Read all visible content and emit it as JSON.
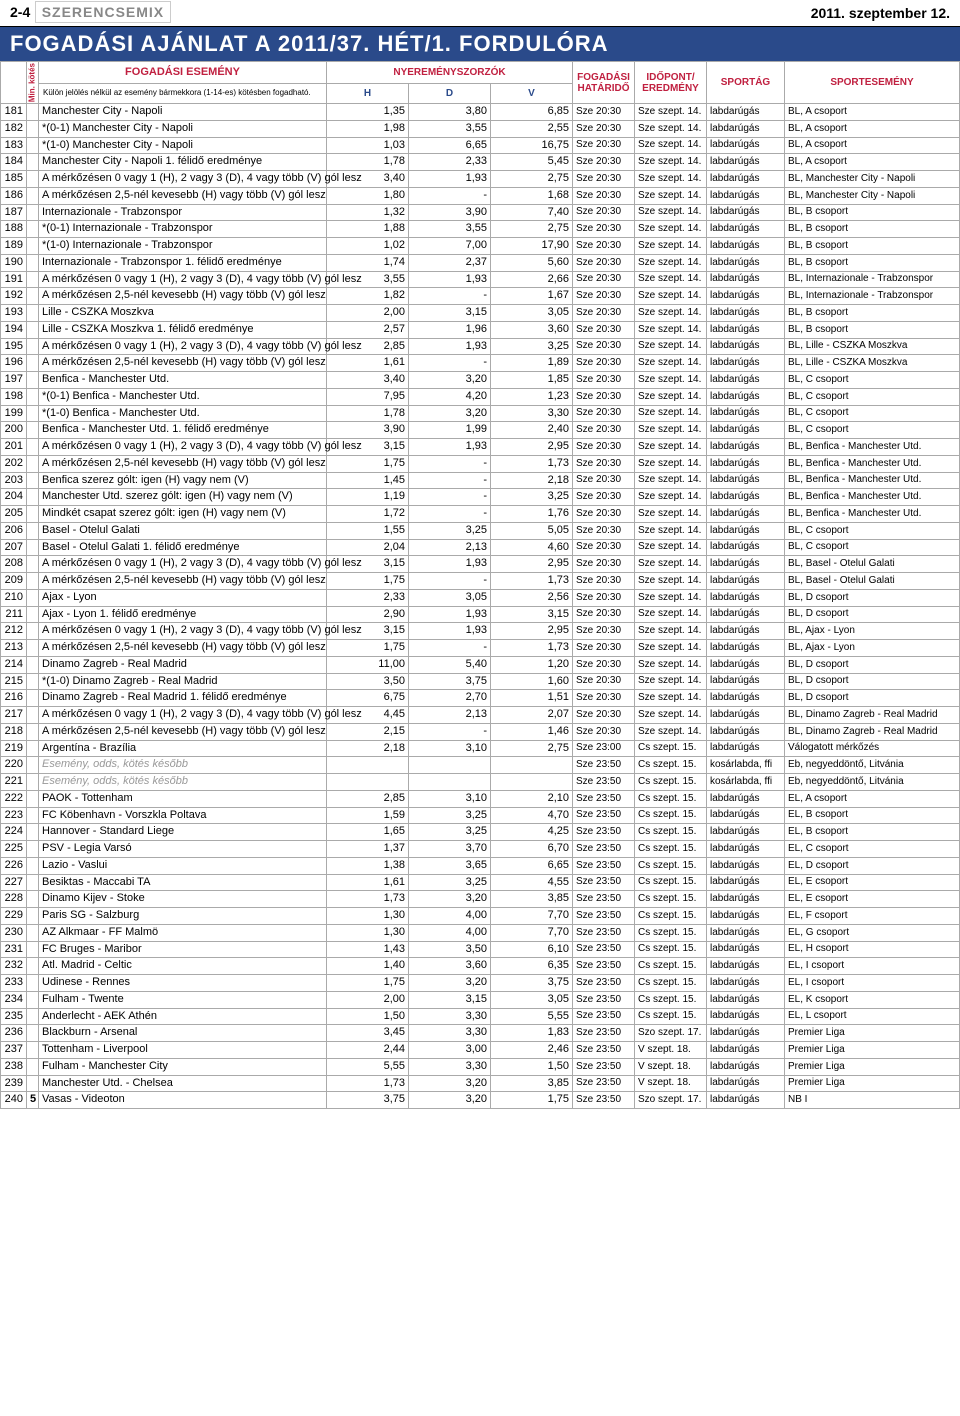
{
  "header": {
    "page": "2-4",
    "brand": "SZERENCSEMIX",
    "date": "2011. szeptember 12."
  },
  "banner": "Fogadási ajánlat a 2011/37. hét/1. fordulóra",
  "table": {
    "head": {
      "min": "Min. kötés",
      "event": "FOGADÁSI ESEMÉNY",
      "event_note": "Külön jelölés nélkül az esemény bármekkora (1-14-es) kötésben fogadható.",
      "odds_group": "NYEREMÉNYSZORZÓK",
      "h": "H",
      "d": "D",
      "v": "V",
      "deadline": "FOGADÁSI HATÁRIDŐ",
      "time": "IDŐPONT/ EREDMÉNY",
      "sport": "SPORTÁG",
      "detail": "SPORTESEMÉNY"
    },
    "rows": [
      {
        "n": "181",
        "m": "",
        "e": "Manchester City - Napoli",
        "h": "1,35",
        "d": "3,80",
        "v": "6,85",
        "dl": "Sze 20:30",
        "t": "Sze szept. 14.",
        "s": "labdarúgás",
        "de": "BL, A csoport"
      },
      {
        "n": "182",
        "m": "",
        "e": "*(0-1) Manchester City - Napoli",
        "h": "1,98",
        "d": "3,55",
        "v": "2,55",
        "dl": "Sze 20:30",
        "t": "Sze szept. 14.",
        "s": "labdarúgás",
        "de": "BL, A csoport"
      },
      {
        "n": "183",
        "m": "",
        "e": "*(1-0) Manchester City - Napoli",
        "h": "1,03",
        "d": "6,65",
        "v": "16,75",
        "dl": "Sze 20:30",
        "t": "Sze szept. 14.",
        "s": "labdarúgás",
        "de": "BL, A csoport"
      },
      {
        "n": "184",
        "m": "",
        "e": "Manchester City - Napoli 1. félidő eredménye",
        "h": "1,78",
        "d": "2,33",
        "v": "5,45",
        "dl": "Sze 20:30",
        "t": "Sze szept. 14.",
        "s": "labdarúgás",
        "de": "BL, A csoport"
      },
      {
        "n": "185",
        "m": "",
        "e": "A mérkőzésen 0 vagy 1 (H), 2 vagy 3 (D), 4 vagy több (V) gól lesz",
        "h": "3,40",
        "d": "1,93",
        "v": "2,75",
        "dl": "Sze 20:30",
        "t": "Sze szept. 14.",
        "s": "labdarúgás",
        "de": "BL, Manchester City - Napoli"
      },
      {
        "n": "186",
        "m": "",
        "e": "A mérkőzésen 2,5-nél kevesebb (H) vagy több (V) gól lesz",
        "h": "1,80",
        "d": "-",
        "v": "1,68",
        "dl": "Sze 20:30",
        "t": "Sze szept. 14.",
        "s": "labdarúgás",
        "de": "BL, Manchester City - Napoli"
      },
      {
        "n": "187",
        "m": "",
        "e": "Internazionale - Trabzonspor",
        "h": "1,32",
        "d": "3,90",
        "v": "7,40",
        "dl": "Sze 20:30",
        "t": "Sze szept. 14.",
        "s": "labdarúgás",
        "de": "BL, B csoport"
      },
      {
        "n": "188",
        "m": "",
        "e": "*(0-1) Internazionale - Trabzonspor",
        "h": "1,88",
        "d": "3,55",
        "v": "2,75",
        "dl": "Sze 20:30",
        "t": "Sze szept. 14.",
        "s": "labdarúgás",
        "de": "BL, B csoport"
      },
      {
        "n": "189",
        "m": "",
        "e": "*(1-0) Internazionale - Trabzonspor",
        "h": "1,02",
        "d": "7,00",
        "v": "17,90",
        "dl": "Sze 20:30",
        "t": "Sze szept. 14.",
        "s": "labdarúgás",
        "de": "BL, B csoport"
      },
      {
        "n": "190",
        "m": "",
        "e": "Internazionale - Trabzonspor 1. félidő eredménye",
        "h": "1,74",
        "d": "2,37",
        "v": "5,60",
        "dl": "Sze 20:30",
        "t": "Sze szept. 14.",
        "s": "labdarúgás",
        "de": "BL, B csoport"
      },
      {
        "n": "191",
        "m": "",
        "e": "A mérkőzésen 0 vagy 1 (H), 2 vagy 3 (D), 4 vagy több (V) gól lesz",
        "h": "3,55",
        "d": "1,93",
        "v": "2,66",
        "dl": "Sze 20:30",
        "t": "Sze szept. 14.",
        "s": "labdarúgás",
        "de": "BL, Internazionale - Trabzonspor"
      },
      {
        "n": "192",
        "m": "",
        "e": "A mérkőzésen 2,5-nél kevesebb (H) vagy több (V) gól lesz",
        "h": "1,82",
        "d": "-",
        "v": "1,67",
        "dl": "Sze 20:30",
        "t": "Sze szept. 14.",
        "s": "labdarúgás",
        "de": "BL, Internazionale - Trabzonspor"
      },
      {
        "n": "193",
        "m": "",
        "e": "Lille - CSZKA Moszkva",
        "h": "2,00",
        "d": "3,15",
        "v": "3,05",
        "dl": "Sze 20:30",
        "t": "Sze szept. 14.",
        "s": "labdarúgás",
        "de": "BL, B csoport"
      },
      {
        "n": "194",
        "m": "",
        "e": "Lille - CSZKA Moszkva 1. félidő eredménye",
        "h": "2,57",
        "d": "1,96",
        "v": "3,60",
        "dl": "Sze 20:30",
        "t": "Sze szept. 14.",
        "s": "labdarúgás",
        "de": "BL, B csoport"
      },
      {
        "n": "195",
        "m": "",
        "e": "A mérkőzésen 0 vagy 1 (H), 2 vagy 3 (D), 4 vagy több (V) gól lesz",
        "h": "2,85",
        "d": "1,93",
        "v": "3,25",
        "dl": "Sze 20:30",
        "t": "Sze szept. 14.",
        "s": "labdarúgás",
        "de": "BL, Lille - CSZKA Moszkva"
      },
      {
        "n": "196",
        "m": "",
        "e": "A mérkőzésen 2,5-nél kevesebb (H) vagy több (V) gól lesz",
        "h": "1,61",
        "d": "-",
        "v": "1,89",
        "dl": "Sze 20:30",
        "t": "Sze szept. 14.",
        "s": "labdarúgás",
        "de": "BL, Lille - CSZKA Moszkva"
      },
      {
        "n": "197",
        "m": "",
        "e": "Benfica - Manchester Utd.",
        "h": "3,40",
        "d": "3,20",
        "v": "1,85",
        "dl": "Sze 20:30",
        "t": "Sze szept. 14.",
        "s": "labdarúgás",
        "de": "BL, C csoport"
      },
      {
        "n": "198",
        "m": "",
        "e": "*(0-1) Benfica - Manchester Utd.",
        "h": "7,95",
        "d": "4,20",
        "v": "1,23",
        "dl": "Sze 20:30",
        "t": "Sze szept. 14.",
        "s": "labdarúgás",
        "de": "BL, C csoport"
      },
      {
        "n": "199",
        "m": "",
        "e": "*(1-0) Benfica - Manchester Utd.",
        "h": "1,78",
        "d": "3,20",
        "v": "3,30",
        "dl": "Sze 20:30",
        "t": "Sze szept. 14.",
        "s": "labdarúgás",
        "de": "BL, C csoport"
      },
      {
        "n": "200",
        "m": "",
        "e": "Benfica - Manchester Utd. 1. félidő eredménye",
        "h": "3,90",
        "d": "1,99",
        "v": "2,40",
        "dl": "Sze 20:30",
        "t": "Sze szept. 14.",
        "s": "labdarúgás",
        "de": "BL, C csoport"
      },
      {
        "n": "201",
        "m": "",
        "e": "A mérkőzésen 0 vagy 1 (H), 2 vagy 3 (D), 4 vagy több (V) gól lesz",
        "h": "3,15",
        "d": "1,93",
        "v": "2,95",
        "dl": "Sze 20:30",
        "t": "Sze szept. 14.",
        "s": "labdarúgás",
        "de": "BL, Benfica - Manchester Utd."
      },
      {
        "n": "202",
        "m": "",
        "e": "A mérkőzésen 2,5-nél kevesebb (H) vagy több (V) gól lesz",
        "h": "1,75",
        "d": "-",
        "v": "1,73",
        "dl": "Sze 20:30",
        "t": "Sze szept. 14.",
        "s": "labdarúgás",
        "de": "BL, Benfica - Manchester Utd."
      },
      {
        "n": "203",
        "m": "",
        "e": "Benfica szerez gólt: igen (H) vagy nem (V)",
        "h": "1,45",
        "d": "-",
        "v": "2,18",
        "dl": "Sze 20:30",
        "t": "Sze szept. 14.",
        "s": "labdarúgás",
        "de": "BL, Benfica - Manchester Utd."
      },
      {
        "n": "204",
        "m": "",
        "e": "Manchester Utd. szerez gólt: igen (H) vagy nem (V)",
        "h": "1,19",
        "d": "-",
        "v": "3,25",
        "dl": "Sze 20:30",
        "t": "Sze szept. 14.",
        "s": "labdarúgás",
        "de": "BL, Benfica - Manchester Utd."
      },
      {
        "n": "205",
        "m": "",
        "e": "Mindkét csapat szerez gólt: igen (H) vagy nem (V)",
        "h": "1,72",
        "d": "-",
        "v": "1,76",
        "dl": "Sze 20:30",
        "t": "Sze szept. 14.",
        "s": "labdarúgás",
        "de": "BL, Benfica - Manchester Utd."
      },
      {
        "n": "206",
        "m": "",
        "e": "Basel - Otelul Galati",
        "h": "1,55",
        "d": "3,25",
        "v": "5,05",
        "dl": "Sze 20:30",
        "t": "Sze szept. 14.",
        "s": "labdarúgás",
        "de": "BL, C csoport"
      },
      {
        "n": "207",
        "m": "",
        "e": "Basel - Otelul Galati 1. félidő eredménye",
        "h": "2,04",
        "d": "2,13",
        "v": "4,60",
        "dl": "Sze 20:30",
        "t": "Sze szept. 14.",
        "s": "labdarúgás",
        "de": "BL, C csoport"
      },
      {
        "n": "208",
        "m": "",
        "e": "A mérkőzésen 0 vagy 1 (H), 2 vagy 3 (D), 4 vagy több (V) gól lesz",
        "h": "3,15",
        "d": "1,93",
        "v": "2,95",
        "dl": "Sze 20:30",
        "t": "Sze szept. 14.",
        "s": "labdarúgás",
        "de": "BL, Basel - Otelul Galati"
      },
      {
        "n": "209",
        "m": "",
        "e": "A mérkőzésen 2,5-nél kevesebb (H) vagy több (V) gól lesz",
        "h": "1,75",
        "d": "-",
        "v": "1,73",
        "dl": "Sze 20:30",
        "t": "Sze szept. 14.",
        "s": "labdarúgás",
        "de": "BL, Basel - Otelul Galati"
      },
      {
        "n": "210",
        "m": "",
        "e": "Ajax - Lyon",
        "h": "2,33",
        "d": "3,05",
        "v": "2,56",
        "dl": "Sze 20:30",
        "t": "Sze szept. 14.",
        "s": "labdarúgás",
        "de": "BL, D csoport"
      },
      {
        "n": "211",
        "m": "",
        "e": "Ajax - Lyon 1. félidő eredménye",
        "h": "2,90",
        "d": "1,93",
        "v": "3,15",
        "dl": "Sze 20:30",
        "t": "Sze szept. 14.",
        "s": "labdarúgás",
        "de": "BL, D csoport"
      },
      {
        "n": "212",
        "m": "",
        "e": "A mérkőzésen 0 vagy 1 (H), 2 vagy 3 (D), 4 vagy több (V) gól lesz",
        "h": "3,15",
        "d": "1,93",
        "v": "2,95",
        "dl": "Sze 20:30",
        "t": "Sze szept. 14.",
        "s": "labdarúgás",
        "de": "BL, Ajax - Lyon"
      },
      {
        "n": "213",
        "m": "",
        "e": "A mérkőzésen 2,5-nél kevesebb (H) vagy több (V) gól lesz",
        "h": "1,75",
        "d": "-",
        "v": "1,73",
        "dl": "Sze 20:30",
        "t": "Sze szept. 14.",
        "s": "labdarúgás",
        "de": "BL, Ajax - Lyon"
      },
      {
        "n": "214",
        "m": "",
        "e": "Dinamo Zagreb - Real Madrid",
        "h": "11,00",
        "d": "5,40",
        "v": "1,20",
        "dl": "Sze 20:30",
        "t": "Sze szept. 14.",
        "s": "labdarúgás",
        "de": "BL, D csoport"
      },
      {
        "n": "215",
        "m": "",
        "e": "*(1-0) Dinamo Zagreb - Real Madrid",
        "h": "3,50",
        "d": "3,75",
        "v": "1,60",
        "dl": "Sze 20:30",
        "t": "Sze szept. 14.",
        "s": "labdarúgás",
        "de": "BL, D csoport"
      },
      {
        "n": "216",
        "m": "",
        "e": "Dinamo Zagreb - Real Madrid 1. félidő eredménye",
        "h": "6,75",
        "d": "2,70",
        "v": "1,51",
        "dl": "Sze 20:30",
        "t": "Sze szept. 14.",
        "s": "labdarúgás",
        "de": "BL, D csoport"
      },
      {
        "n": "217",
        "m": "",
        "e": "A mérkőzésen 0 vagy 1 (H), 2 vagy 3 (D), 4 vagy több (V) gól lesz",
        "h": "4,45",
        "d": "2,13",
        "v": "2,07",
        "dl": "Sze 20:30",
        "t": "Sze szept. 14.",
        "s": "labdarúgás",
        "de": "BL, Dinamo Zagreb - Real Madrid"
      },
      {
        "n": "218",
        "m": "",
        "e": "A mérkőzésen 2,5-nél kevesebb (H) vagy több (V) gól lesz",
        "h": "2,15",
        "d": "-",
        "v": "1,46",
        "dl": "Sze 20:30",
        "t": "Sze szept. 14.",
        "s": "labdarúgás",
        "de": "BL, Dinamo Zagreb - Real Madrid"
      },
      {
        "n": "219",
        "m": "",
        "e": "Argentína - Brazília",
        "h": "2,18",
        "d": "3,10",
        "v": "2,75",
        "dl": "Sze 23:00",
        "t": "Cs szept. 15.",
        "s": "labdarúgás",
        "de": "Válogatott mérkőzés"
      },
      {
        "n": "220",
        "m": "",
        "e": "",
        "faded": true,
        "fe": "Esemény, odds, kötés később",
        "h": "",
        "d": "",
        "v": "",
        "dl": "Sze 23:50",
        "t": "Cs szept. 15.",
        "s": "kosárlabda, ffi",
        "de": "Eb, negyeddöntő, Litvánia"
      },
      {
        "n": "221",
        "m": "",
        "e": "",
        "faded": true,
        "fe": "Esemény, odds, kötés később",
        "h": "",
        "d": "",
        "v": "",
        "dl": "Sze 23:50",
        "t": "Cs szept. 15.",
        "s": "kosárlabda, ffi",
        "de": "Eb, negyeddöntő, Litvánia"
      },
      {
        "n": "222",
        "m": "",
        "e": "PAOK - Tottenham",
        "h": "2,85",
        "d": "3,10",
        "v": "2,10",
        "dl": "Sze 23:50",
        "t": "Cs szept. 15.",
        "s": "labdarúgás",
        "de": "EL, A csoport"
      },
      {
        "n": "223",
        "m": "",
        "e": "FC Köbenhavn - Vorszkla Poltava",
        "h": "1,59",
        "d": "3,25",
        "v": "4,70",
        "dl": "Sze 23:50",
        "t": "Cs szept. 15.",
        "s": "labdarúgás",
        "de": "EL, B csoport"
      },
      {
        "n": "224",
        "m": "",
        "e": "Hannover - Standard Liege",
        "h": "1,65",
        "d": "3,25",
        "v": "4,25",
        "dl": "Sze 23:50",
        "t": "Cs szept. 15.",
        "s": "labdarúgás",
        "de": "EL, B csoport"
      },
      {
        "n": "225",
        "m": "",
        "e": "PSV - Legia Varsó",
        "h": "1,37",
        "d": "3,70",
        "v": "6,70",
        "dl": "Sze 23:50",
        "t": "Cs szept. 15.",
        "s": "labdarúgás",
        "de": "EL, C csoport"
      },
      {
        "n": "226",
        "m": "",
        "e": "Lazio - Vaslui",
        "h": "1,38",
        "d": "3,65",
        "v": "6,65",
        "dl": "Sze 23:50",
        "t": "Cs szept. 15.",
        "s": "labdarúgás",
        "de": "EL, D csoport"
      },
      {
        "n": "227",
        "m": "",
        "e": "Besiktas - Maccabi TA",
        "h": "1,61",
        "d": "3,25",
        "v": "4,55",
        "dl": "Sze 23:50",
        "t": "Cs szept. 15.",
        "s": "labdarúgás",
        "de": "EL, E csoport"
      },
      {
        "n": "228",
        "m": "",
        "e": "Dinamo Kijev - Stoke",
        "h": "1,73",
        "d": "3,20",
        "v": "3,85",
        "dl": "Sze 23:50",
        "t": "Cs szept. 15.",
        "s": "labdarúgás",
        "de": "EL, E csoport"
      },
      {
        "n": "229",
        "m": "",
        "e": "Paris SG - Salzburg",
        "h": "1,30",
        "d": "4,00",
        "v": "7,70",
        "dl": "Sze 23:50",
        "t": "Cs szept. 15.",
        "s": "labdarúgás",
        "de": "EL, F csoport"
      },
      {
        "n": "230",
        "m": "",
        "e": "AZ Alkmaar - FF Malmö",
        "h": "1,30",
        "d": "4,00",
        "v": "7,70",
        "dl": "Sze 23:50",
        "t": "Cs szept. 15.",
        "s": "labdarúgás",
        "de": "EL, G csoport"
      },
      {
        "n": "231",
        "m": "",
        "e": "FC Bruges - Maribor",
        "h": "1,43",
        "d": "3,50",
        "v": "6,10",
        "dl": "Sze 23:50",
        "t": "Cs szept. 15.",
        "s": "labdarúgás",
        "de": "EL, H csoport"
      },
      {
        "n": "232",
        "m": "",
        "e": "Atl. Madrid - Celtic",
        "h": "1,40",
        "d": "3,60",
        "v": "6,35",
        "dl": "Sze 23:50",
        "t": "Cs szept. 15.",
        "s": "labdarúgás",
        "de": "EL, I csoport"
      },
      {
        "n": "233",
        "m": "",
        "e": "Udinese - Rennes",
        "h": "1,75",
        "d": "3,20",
        "v": "3,75",
        "dl": "Sze 23:50",
        "t": "Cs szept. 15.",
        "s": "labdarúgás",
        "de": "EL, I csoport"
      },
      {
        "n": "234",
        "m": "",
        "e": "Fulham - Twente",
        "h": "2,00",
        "d": "3,15",
        "v": "3,05",
        "dl": "Sze 23:50",
        "t": "Cs szept. 15.",
        "s": "labdarúgás",
        "de": "EL, K csoport"
      },
      {
        "n": "235",
        "m": "",
        "e": "Anderlecht - AEK Athén",
        "h": "1,50",
        "d": "3,30",
        "v": "5,55",
        "dl": "Sze 23:50",
        "t": "Cs szept. 15.",
        "s": "labdarúgás",
        "de": "EL, L csoport"
      },
      {
        "n": "236",
        "m": "",
        "e": "Blackburn - Arsenal",
        "h": "3,45",
        "d": "3,30",
        "v": "1,83",
        "dl": "Sze 23:50",
        "t": "Szo szept. 17.",
        "s": "labdarúgás",
        "de": "Premier Liga"
      },
      {
        "n": "237",
        "m": "",
        "e": "Tottenham - Liverpool",
        "h": "2,44",
        "d": "3,00",
        "v": "2,46",
        "dl": "Sze 23:50",
        "t": "V szept. 18.",
        "s": "labdarúgás",
        "de": "Premier Liga"
      },
      {
        "n": "238",
        "m": "",
        "e": "Fulham - Manchester City",
        "h": "5,55",
        "d": "3,30",
        "v": "1,50",
        "dl": "Sze 23:50",
        "t": "V szept. 18.",
        "s": "labdarúgás",
        "de": "Premier Liga"
      },
      {
        "n": "239",
        "m": "",
        "e": "Manchester Utd. - Chelsea",
        "h": "1,73",
        "d": "3,20",
        "v": "3,85",
        "dl": "Sze 23:50",
        "t": "V szept. 18.",
        "s": "labdarúgás",
        "de": "Premier Liga"
      },
      {
        "n": "240",
        "m": "5",
        "e": "Vasas - Videoton",
        "h": "3,75",
        "d": "3,20",
        "v": "1,75",
        "dl": "Sze 23:50",
        "t": "Szo szept. 17.",
        "s": "labdarúgás",
        "de": "NB I"
      }
    ]
  }
}
